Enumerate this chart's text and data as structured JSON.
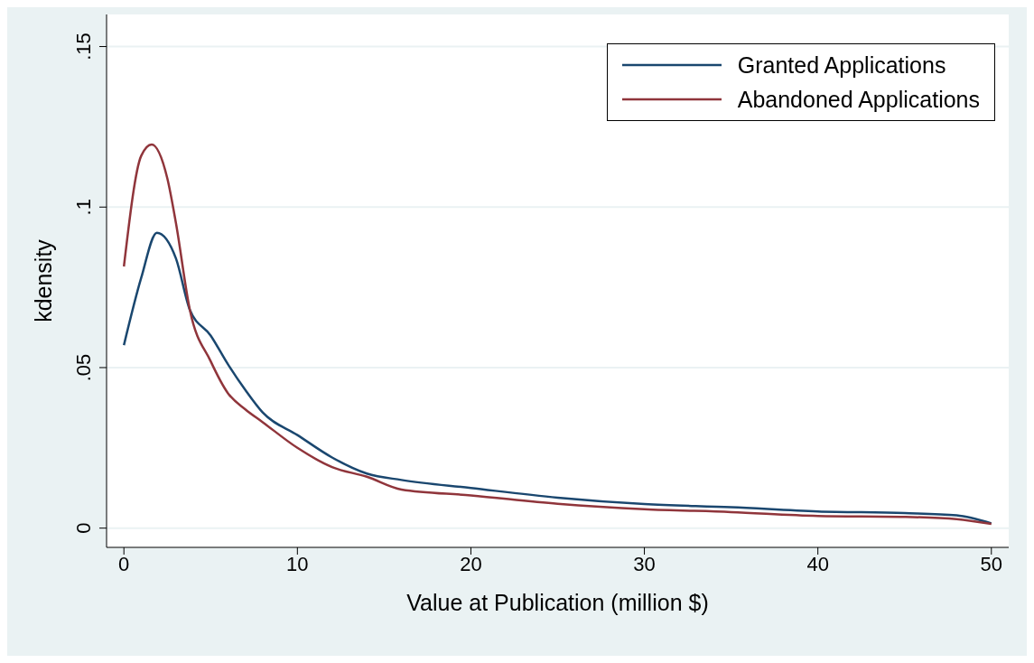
{
  "chart_data": {
    "type": "line",
    "xlabel": "Value at Publication (million $)",
    "ylabel": "kdensity",
    "xlim": [
      -1,
      51
    ],
    "xticks": [
      0,
      10,
      20,
      30,
      40,
      50
    ],
    "ylim": [
      -0.006,
      0.16
    ],
    "yticks": [
      {
        "value": 0,
        "label": "0"
      },
      {
        "value": 0.05,
        "label": ".05"
      },
      {
        "value": 0.1,
        "label": ".1"
      },
      {
        "value": 0.15,
        "label": ".15"
      }
    ],
    "grid": "y",
    "legend": "top right",
    "marker": "none",
    "line_style": "solid",
    "series": [
      {
        "name": "Granted Applications",
        "color": "#1a476f",
        "x": [
          0,
          1,
          1.9,
          3,
          3.8,
          5,
          6,
          7,
          8,
          10,
          12,
          14,
          16,
          20,
          25,
          30,
          35,
          40,
          45,
          48,
          50
        ],
        "values": [
          0.057,
          0.078,
          0.092,
          0.084,
          0.068,
          0.06,
          0.051,
          0.043,
          0.036,
          0.029,
          0.022,
          0.017,
          0.015,
          0.0125,
          0.0095,
          0.0075,
          0.0065,
          0.0052,
          0.0047,
          0.004,
          0.0015
        ]
      },
      {
        "name": "Abandoned Applications",
        "color": "#90353b",
        "x": [
          0,
          1,
          1.6,
          2.5,
          3,
          3.8,
          5,
          6,
          7,
          8,
          10,
          12,
          14,
          16,
          20,
          25,
          30,
          35,
          40,
          45,
          48,
          50
        ],
        "values": [
          0.0815,
          0.116,
          0.1195,
          0.109,
          0.095,
          0.068,
          0.052,
          0.042,
          0.037,
          0.033,
          0.025,
          0.019,
          0.016,
          0.012,
          0.0102,
          0.0076,
          0.0059,
          0.005,
          0.0038,
          0.0035,
          0.0028,
          0.0013
        ]
      }
    ]
  }
}
